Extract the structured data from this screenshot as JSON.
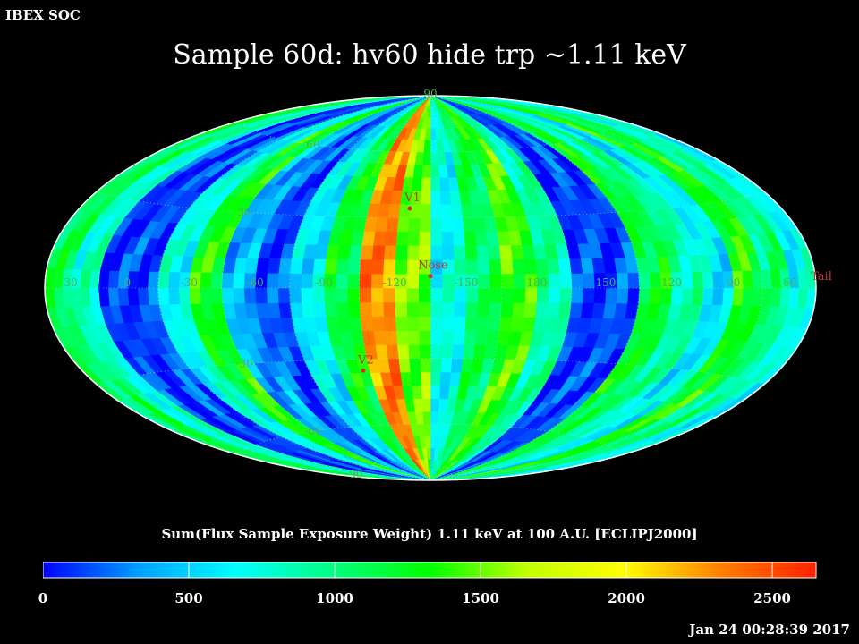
{
  "header": {
    "corner_label": "IBEX SOC"
  },
  "title": "Sample 60d: hv60 hide trp ~1.11 keV",
  "map": {
    "projection": "aitoff-hammer",
    "grid_color": "#cfcfcf",
    "marker_color": "#d03030",
    "equator_lon_labels": [
      "60",
      "30",
      "0",
      "-30",
      "-60",
      "-90",
      "-120",
      "-150",
      "180",
      "150",
      "120",
      "90"
    ],
    "lat_labels_left": [
      "60",
      "30",
      "-30",
      "-60"
    ],
    "pole_labels": {
      "north": "90",
      "south": "-90"
    },
    "markers": [
      {
        "id": "v1",
        "label": "V1",
        "lon": -95,
        "lat": 34
      },
      {
        "id": "nose",
        "label": "Nose",
        "lon": -105,
        "lat": 5
      },
      {
        "id": "v2",
        "label": "V2",
        "lon": -72,
        "lat": -35
      }
    ],
    "edge_label": "Tail"
  },
  "colorbar": {
    "title": "Sum(Flux Sample Exposure Weight)  1.11 keV at 100 A.U. [ECLIPJ2000]",
    "min": 0,
    "max": 2650,
    "ticks": [
      "0",
      "500",
      "1000",
      "1500",
      "2000",
      "2500"
    ],
    "stops": [
      "#0000ff",
      "#00a0ff",
      "#00ffff",
      "#00ff80",
      "#00ff00",
      "#c0ff00",
      "#ffff00",
      "#ff8000",
      "#ff2000"
    ]
  },
  "timestamp": "Jan 24 00:28:39 2017"
}
